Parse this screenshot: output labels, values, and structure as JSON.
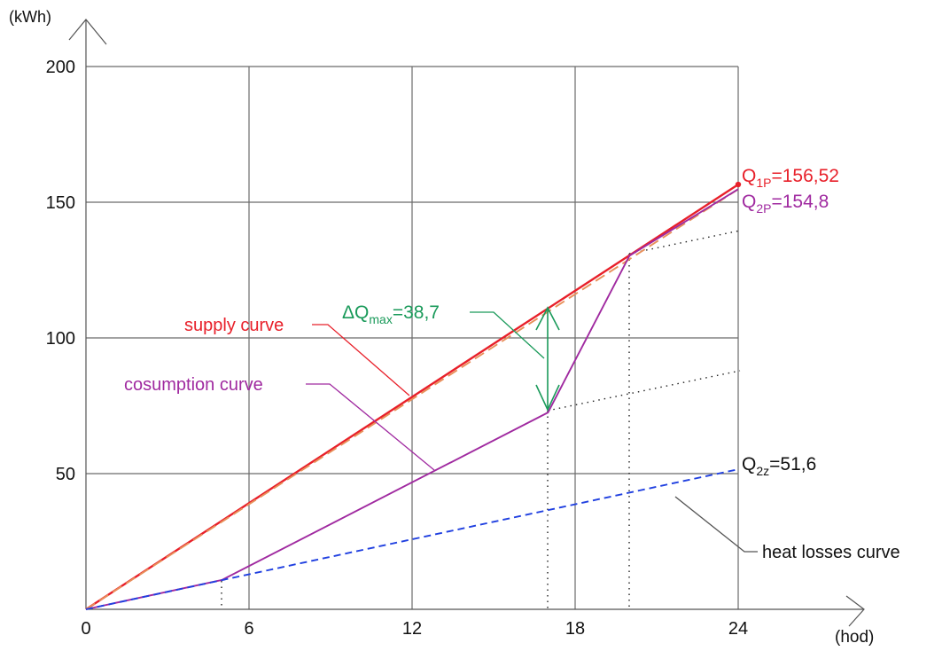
{
  "chart_data": {
    "type": "line",
    "xlabel": "(hod)",
    "ylabel": "(kWh)",
    "xlim": [
      0,
      24
    ],
    "ylim": [
      0,
      200
    ],
    "x_ticks": [
      "0",
      "6",
      "12",
      "18",
      "24"
    ],
    "y_ticks": [
      "50",
      "100",
      "150",
      "200"
    ],
    "grid": true,
    "series": [
      {
        "name": "supply curve",
        "color": "#e8202a",
        "style": "solid",
        "x": [
          0,
          24
        ],
        "y": [
          0,
          156.52
        ]
      },
      {
        "color": "#e8905a",
        "style": "dashed",
        "x": [
          0,
          24
        ],
        "y": [
          0,
          154.8
        ]
      },
      {
        "name": "cosumption curve",
        "color": "#a02aa0",
        "style": "solid",
        "x": [
          0,
          5,
          17,
          20,
          24
        ],
        "y": [
          0,
          10.8,
          72.5,
          130.3,
          154.8
        ]
      },
      {
        "name": "heat losses curve",
        "color": "#2040e0",
        "style": "dashed",
        "x": [
          0,
          24
        ],
        "y": [
          0,
          51.6
        ]
      }
    ],
    "annotations": {
      "q1p": {
        "base": "Q",
        "sub": "1P",
        "value": "=156,52",
        "color": "#e8202a"
      },
      "q2p": {
        "base": "Q",
        "sub": "2P",
        "value": "=154,8",
        "color": "#a02aa0"
      },
      "q2z": {
        "base": "Q",
        "sub": "2z",
        "value": "=51,6",
        "color": "#111111"
      },
      "dq": {
        "base": "ΔQ",
        "sub": "max",
        "value": "=38,7",
        "color": "#1a9a5a",
        "x": 17,
        "y_top": 111.2,
        "y_bottom": 72.5
      }
    }
  }
}
